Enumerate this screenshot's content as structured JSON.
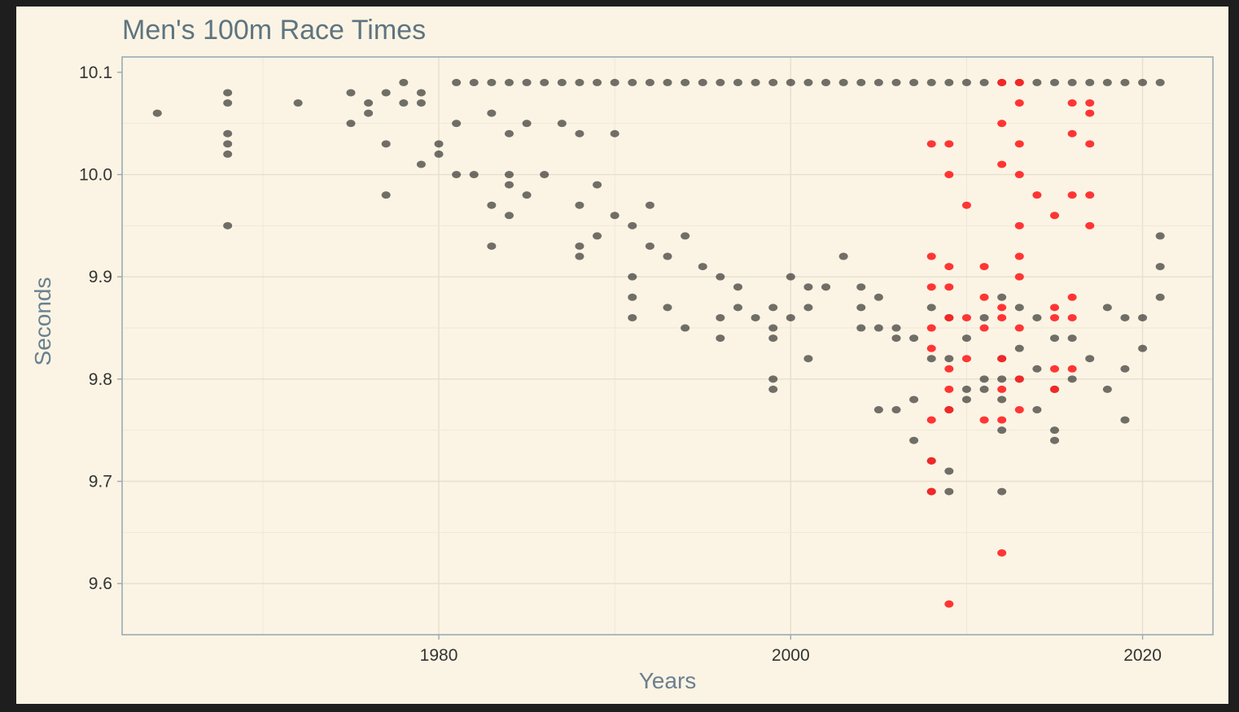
{
  "chart_data": {
    "type": "scatter",
    "title": "Men's 100m Race Times",
    "xlabel": "Years",
    "ylabel": "Seconds",
    "xlim": [
      1962,
      2024
    ],
    "ylim": [
      9.55,
      10.115
    ],
    "x_ticks": [
      1980,
      2000,
      2020
    ],
    "y_ticks": [
      9.6,
      9.7,
      9.8,
      9.9,
      10.0,
      10.1
    ],
    "x_tick_labels": [
      "1980",
      "2000",
      "2020"
    ],
    "y_tick_labels": [
      "9.6",
      "9.7",
      "9.8",
      "9.9",
      "10.0",
      "10.1"
    ],
    "grid": true,
    "legend": "none",
    "series": [
      {
        "color": "#000000",
        "points": [
          [
            1964,
            10.06
          ],
          [
            1968,
            10.03
          ],
          [
            1968,
            10.08
          ],
          [
            1968,
            10.07
          ],
          [
            1968,
            10.04
          ],
          [
            1968,
            10.02
          ],
          [
            1968,
            9.95
          ],
          [
            1972,
            10.07
          ],
          [
            1975,
            10.08
          ],
          [
            1975,
            10.05
          ],
          [
            1976,
            10.07
          ],
          [
            1976,
            10.06
          ],
          [
            1977,
            10.03
          ],
          [
            1977,
            9.98
          ],
          [
            1977,
            10.08
          ],
          [
            1978,
            10.09
          ],
          [
            1978,
            10.07
          ],
          [
            1979,
            10.07
          ],
          [
            1979,
            10.01
          ],
          [
            1979,
            10.08
          ],
          [
            1980,
            10.03
          ],
          [
            1980,
            10.02
          ],
          [
            1981,
            10.09
          ],
          [
            1981,
            10.05
          ],
          [
            1981,
            10.0
          ],
          [
            1982,
            10.09
          ],
          [
            1982,
            10.0
          ],
          [
            1983,
            10.09
          ],
          [
            1983,
            10.06
          ],
          [
            1983,
            9.97
          ],
          [
            1983,
            9.93
          ],
          [
            1984,
            10.09
          ],
          [
            1984,
            10.04
          ],
          [
            1984,
            10.0
          ],
          [
            1984,
            9.99
          ],
          [
            1984,
            9.96
          ],
          [
            1985,
            10.09
          ],
          [
            1985,
            10.05
          ],
          [
            1985,
            9.98
          ],
          [
            1986,
            10.09
          ],
          [
            1986,
            10.0
          ],
          [
            1987,
            10.09
          ],
          [
            1987,
            10.05
          ],
          [
            1988,
            10.09
          ],
          [
            1988,
            10.04
          ],
          [
            1988,
            9.97
          ],
          [
            1988,
            9.93
          ],
          [
            1988,
            9.92
          ],
          [
            1989,
            10.09
          ],
          [
            1989,
            9.99
          ],
          [
            1989,
            9.94
          ],
          [
            1990,
            10.09
          ],
          [
            1990,
            10.04
          ],
          [
            1990,
            9.96
          ],
          [
            1991,
            10.09
          ],
          [
            1991,
            9.95
          ],
          [
            1991,
            9.9
          ],
          [
            1991,
            9.88
          ],
          [
            1991,
            9.86
          ],
          [
            1992,
            10.09
          ],
          [
            1992,
            9.97
          ],
          [
            1992,
            9.93
          ],
          [
            1993,
            10.09
          ],
          [
            1993,
            9.92
          ],
          [
            1993,
            9.87
          ],
          [
            1994,
            10.09
          ],
          [
            1994,
            9.94
          ],
          [
            1994,
            9.85
          ],
          [
            1995,
            10.09
          ],
          [
            1995,
            9.91
          ],
          [
            1996,
            10.09
          ],
          [
            1996,
            9.9
          ],
          [
            1996,
            9.86
          ],
          [
            1996,
            9.84
          ],
          [
            1997,
            10.09
          ],
          [
            1997,
            9.89
          ],
          [
            1997,
            9.87
          ],
          [
            1998,
            10.09
          ],
          [
            1998,
            9.86
          ],
          [
            1999,
            10.09
          ],
          [
            1999,
            9.87
          ],
          [
            1999,
            9.85
          ],
          [
            1999,
            9.84
          ],
          [
            1999,
            9.8
          ],
          [
            1999,
            9.79
          ],
          [
            2000,
            10.09
          ],
          [
            2000,
            9.9
          ],
          [
            2000,
            9.86
          ],
          [
            2001,
            10.09
          ],
          [
            2001,
            9.89
          ],
          [
            2001,
            9.87
          ],
          [
            2001,
            9.82
          ],
          [
            2002,
            10.09
          ],
          [
            2002,
            9.89
          ],
          [
            2003,
            10.09
          ],
          [
            2003,
            9.92
          ],
          [
            2004,
            10.09
          ],
          [
            2004,
            9.89
          ],
          [
            2004,
            9.87
          ],
          [
            2004,
            9.85
          ],
          [
            2005,
            10.09
          ],
          [
            2005,
            9.88
          ],
          [
            2005,
            9.85
          ],
          [
            2005,
            9.77
          ],
          [
            2006,
            10.09
          ],
          [
            2006,
            9.85
          ],
          [
            2006,
            9.84
          ],
          [
            2006,
            9.77
          ],
          [
            2007,
            10.09
          ],
          [
            2007,
            9.84
          ],
          [
            2007,
            9.78
          ],
          [
            2007,
            9.74
          ],
          [
            2008,
            10.09
          ],
          [
            2008,
            9.87
          ],
          [
            2008,
            9.82
          ],
          [
            2008,
            9.72
          ],
          [
            2008,
            9.69
          ],
          [
            2009,
            10.09
          ],
          [
            2009,
            9.86
          ],
          [
            2009,
            9.82
          ],
          [
            2009,
            9.77
          ],
          [
            2009,
            9.71
          ],
          [
            2009,
            9.69
          ],
          [
            2010,
            10.09
          ],
          [
            2010,
            9.84
          ],
          [
            2010,
            9.79
          ],
          [
            2010,
            9.78
          ],
          [
            2011,
            10.09
          ],
          [
            2011,
            9.86
          ],
          [
            2011,
            9.8
          ],
          [
            2011,
            9.79
          ],
          [
            2012,
            10.09
          ],
          [
            2012,
            9.88
          ],
          [
            2012,
            9.82
          ],
          [
            2012,
            9.8
          ],
          [
            2012,
            9.78
          ],
          [
            2012,
            9.75
          ],
          [
            2012,
            9.69
          ],
          [
            2013,
            10.09
          ],
          [
            2013,
            9.87
          ],
          [
            2013,
            9.83
          ],
          [
            2013,
            9.8
          ],
          [
            2014,
            10.09
          ],
          [
            2014,
            9.86
          ],
          [
            2014,
            9.81
          ],
          [
            2014,
            9.77
          ],
          [
            2015,
            10.09
          ],
          [
            2015,
            9.84
          ],
          [
            2015,
            9.79
          ],
          [
            2015,
            9.75
          ],
          [
            2015,
            9.74
          ],
          [
            2016,
            10.09
          ],
          [
            2016,
            9.84
          ],
          [
            2016,
            9.8
          ],
          [
            2017,
            10.09
          ],
          [
            2017,
            9.82
          ],
          [
            2018,
            10.09
          ],
          [
            2018,
            9.87
          ],
          [
            2018,
            9.79
          ],
          [
            2019,
            10.09
          ],
          [
            2019,
            9.86
          ],
          [
            2019,
            9.81
          ],
          [
            2019,
            9.76
          ],
          [
            2020,
            10.09
          ],
          [
            2020,
            9.86
          ],
          [
            2020,
            9.83
          ],
          [
            2021,
            10.09
          ],
          [
            2021,
            9.94
          ],
          [
            2021,
            9.91
          ],
          [
            2021,
            9.88
          ]
        ]
      },
      {
        "color": "#ff2020",
        "points": [
          [
            2008,
            10.03
          ],
          [
            2008,
            9.92
          ],
          [
            2008,
            9.89
          ],
          [
            2008,
            9.85
          ],
          [
            2008,
            9.83
          ],
          [
            2008,
            9.76
          ],
          [
            2008,
            9.72
          ],
          [
            2008,
            9.69
          ],
          [
            2009,
            10.03
          ],
          [
            2009,
            10.0
          ],
          [
            2009,
            9.91
          ],
          [
            2009,
            9.89
          ],
          [
            2009,
            9.86
          ],
          [
            2009,
            9.81
          ],
          [
            2009,
            9.79
          ],
          [
            2009,
            9.77
          ],
          [
            2009,
            9.58
          ],
          [
            2010,
            9.97
          ],
          [
            2010,
            9.86
          ],
          [
            2010,
            9.82
          ],
          [
            2011,
            9.91
          ],
          [
            2011,
            9.88
          ],
          [
            2011,
            9.85
          ],
          [
            2011,
            9.76
          ],
          [
            2012,
            10.09
          ],
          [
            2012,
            10.05
          ],
          [
            2012,
            10.01
          ],
          [
            2012,
            9.87
          ],
          [
            2012,
            9.86
          ],
          [
            2012,
            9.82
          ],
          [
            2012,
            9.79
          ],
          [
            2012,
            9.76
          ],
          [
            2012,
            9.63
          ],
          [
            2013,
            10.09
          ],
          [
            2013,
            10.07
          ],
          [
            2013,
            10.03
          ],
          [
            2013,
            10.0
          ],
          [
            2013,
            9.95
          ],
          [
            2013,
            9.92
          ],
          [
            2013,
            9.9
          ],
          [
            2013,
            9.85
          ],
          [
            2013,
            9.8
          ],
          [
            2013,
            9.77
          ],
          [
            2014,
            9.98
          ],
          [
            2015,
            9.96
          ],
          [
            2015,
            9.87
          ],
          [
            2015,
            9.86
          ],
          [
            2015,
            9.81
          ],
          [
            2015,
            9.79
          ],
          [
            2016,
            10.07
          ],
          [
            2016,
            10.04
          ],
          [
            2016,
            9.98
          ],
          [
            2016,
            9.88
          ],
          [
            2016,
            9.86
          ],
          [
            2016,
            9.81
          ],
          [
            2017,
            10.07
          ],
          [
            2017,
            10.06
          ],
          [
            2017,
            10.03
          ],
          [
            2017,
            9.98
          ],
          [
            2017,
            9.95
          ]
        ]
      }
    ]
  }
}
